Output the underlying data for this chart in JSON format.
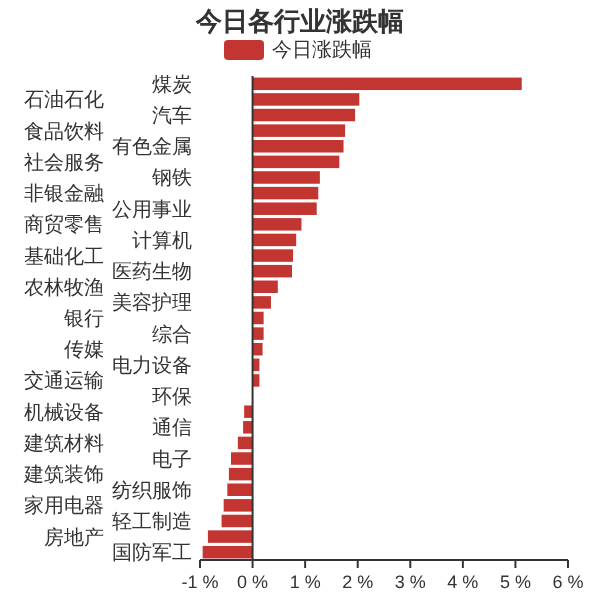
{
  "chart_data": {
    "type": "bar",
    "orientation": "horizontal",
    "title": "今日各行业涨跌幅",
    "legend": "top",
    "categories": [
      "煤炭",
      "石油石化",
      "汽车",
      "食品饮料",
      "有色金属",
      "社会服务",
      "钢铁",
      "非银金融",
      "公用事业",
      "商贸零售",
      "计算机",
      "基础化工",
      "医药生物",
      "农林牧渔",
      "美容护理",
      "银行",
      "综合",
      "传媒",
      "电力设备",
      "交通运输",
      "环保",
      "机械设备",
      "通信",
      "建筑材料",
      "电子",
      "建筑装饰",
      "纺织服饰",
      "家用电器",
      "轻工制造",
      "房地产",
      "国防军工"
    ],
    "series": [
      {
        "name": "今日涨跌幅",
        "color": "#c23531",
        "values": [
          5.12,
          2.03,
          1.95,
          1.76,
          1.73,
          1.65,
          1.28,
          1.25,
          1.22,
          0.93,
          0.83,
          0.77,
          0.75,
          0.48,
          0.35,
          0.21,
          0.21,
          0.19,
          0.13,
          0.13,
          null,
          -0.16,
          -0.18,
          -0.28,
          -0.41,
          -0.45,
          -0.48,
          -0.55,
          -0.59,
          -0.85,
          -0.95
        ]
      }
    ],
    "xlim": [
      -1,
      6
    ],
    "xticks": [
      {
        "value": -1,
        "label": "-1 %"
      },
      {
        "value": 0,
        "label": "0 %"
      },
      {
        "value": 1,
        "label": "1 %"
      },
      {
        "value": 2,
        "label": "2 %"
      },
      {
        "value": 3,
        "label": "3 %"
      },
      {
        "value": 4,
        "label": "4 %"
      },
      {
        "value": 5,
        "label": "5 %"
      },
      {
        "value": 6,
        "label": "6 %"
      }
    ]
  }
}
